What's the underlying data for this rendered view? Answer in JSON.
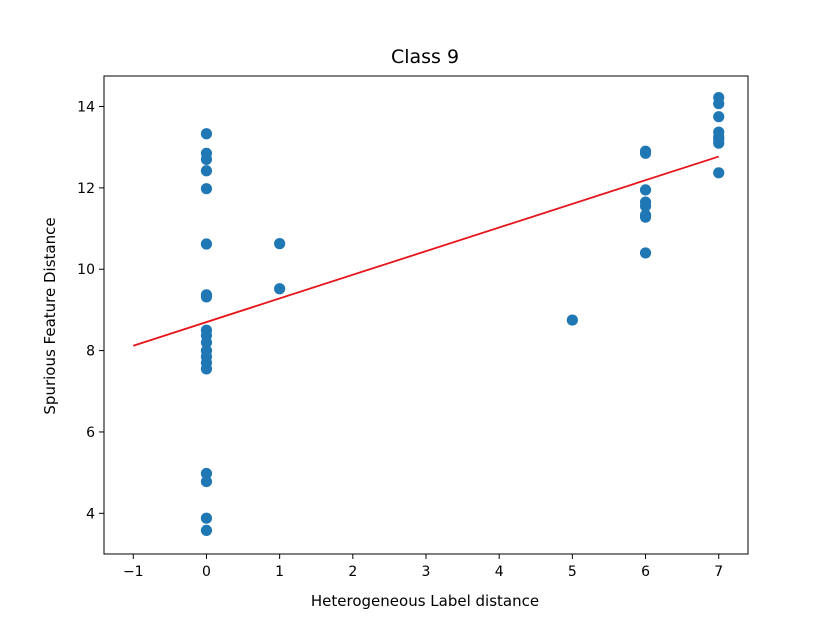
{
  "chart_data": {
    "type": "scatter",
    "title": "Class 9",
    "xlabel": "Heterogeneous Label distance",
    "ylabel": "Spurious Feature Distance",
    "xlim": [
      -1.4,
      7.4
    ],
    "ylim": [
      3.0,
      14.75
    ],
    "xticks": [
      -1,
      0,
      1,
      2,
      3,
      4,
      5,
      6,
      7
    ],
    "xtick_labels": [
      "−1",
      "0",
      "1",
      "2",
      "3",
      "4",
      "5",
      "6",
      "7"
    ],
    "yticks": [
      4,
      6,
      8,
      10,
      12,
      14
    ],
    "ytick_labels": [
      "4",
      "6",
      "8",
      "10",
      "12",
      "14"
    ],
    "grid": false,
    "legend": "none",
    "colors": {
      "points": "#1f77b4",
      "fit_line": "#e6151a"
    },
    "series": [
      {
        "kind": "scatter",
        "x": [
          0,
          0,
          0,
          0,
          0,
          0,
          0,
          0,
          0,
          0,
          0,
          0,
          0,
          0,
          0,
          0,
          0,
          0,
          0,
          1,
          1,
          5,
          6,
          6,
          6,
          6,
          6,
          6,
          6,
          6,
          7,
          7,
          7,
          7,
          7,
          7,
          7,
          7
        ],
        "y": [
          13.33,
          12.85,
          12.7,
          12.42,
          11.98,
          10.62,
          9.37,
          8.5,
          8.37,
          8.2,
          8.0,
          7.85,
          7.7,
          7.55,
          4.98,
          4.78,
          3.88,
          3.58,
          9.32,
          10.63,
          9.52,
          8.75,
          12.9,
          12.85,
          11.95,
          11.65,
          11.55,
          11.33,
          11.28,
          10.4,
          14.22,
          14.07,
          13.75,
          13.37,
          13.25,
          13.2,
          13.1,
          12.37
        ]
      },
      {
        "kind": "line",
        "x": [
          -1,
          7
        ],
        "y": [
          8.12,
          12.77
        ]
      }
    ]
  }
}
